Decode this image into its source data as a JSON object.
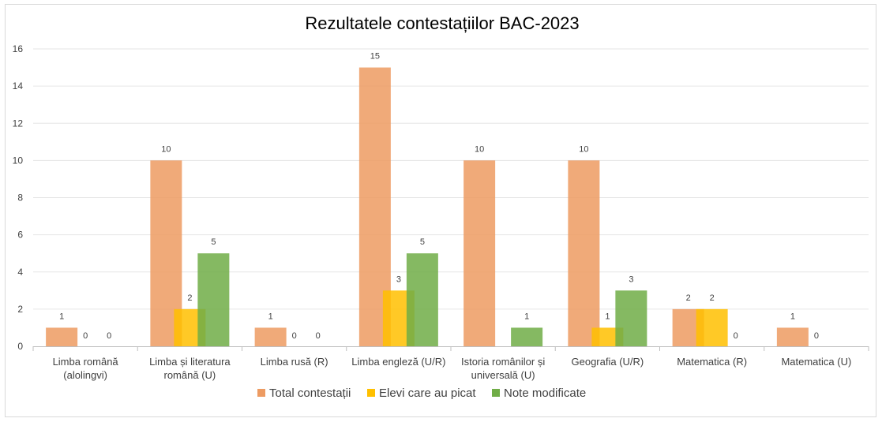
{
  "chart_data": {
    "type": "bar",
    "title": "Rezultatele contestațiilor BAC-2023",
    "categories": [
      [
        "Limba română",
        "(alolingvi)"
      ],
      [
        "Limba și literatura",
        "română (U)"
      ],
      [
        "Limba rusă (R)"
      ],
      [
        "Limba engleză (U/R)"
      ],
      [
        "Istoria românilor și",
        "universală (U)"
      ],
      [
        "Geografia (U/R)"
      ],
      [
        "Matematica (R)"
      ],
      [
        "Matematica (U)"
      ]
    ],
    "series": [
      {
        "name": "Total contestații",
        "color": "#ed9b62",
        "values": [
          1,
          10,
          1,
          15,
          10,
          10,
          2,
          1
        ]
      },
      {
        "name": "Elevi care au picat",
        "color": "#ffc000",
        "values": [
          0,
          2,
          0,
          3,
          null,
          1,
          2,
          0
        ]
      },
      {
        "name": "Note modificate",
        "color": "#70ad47",
        "values": [
          0,
          5,
          0,
          5,
          1,
          3,
          0,
          null
        ]
      }
    ],
    "ylim": [
      0,
      16
    ],
    "yticks": [
      "0",
      "2",
      "4",
      "6",
      "8",
      "10",
      "12",
      "14",
      "16"
    ],
    "grid": true,
    "legend_position": "bottom",
    "xlabel": "",
    "ylabel": ""
  }
}
